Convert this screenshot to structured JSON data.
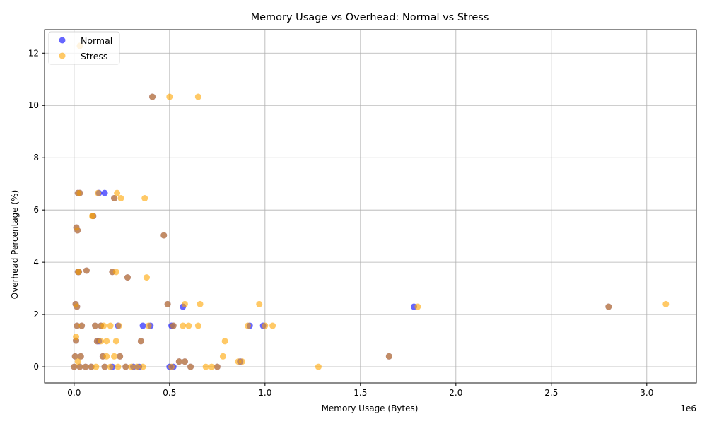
{
  "chart_data": {
    "type": "scatter",
    "title": "Memory Usage vs Overhead: Normal vs Stress",
    "xlabel": "Memory Usage (Bytes)",
    "ylabel": "Overhead Percentage (%)",
    "x_offset_label": "1e6",
    "xlim": [
      -0.155,
      3.26
    ],
    "ylim": [
      -0.62,
      12.9
    ],
    "x_ticks": [
      0.0,
      0.5,
      1.0,
      1.5,
      2.0,
      2.5,
      3.0
    ],
    "x_tick_labels": [
      "0.0",
      "0.5",
      "1.0",
      "1.5",
      "2.0",
      "2.5",
      "3.0"
    ],
    "y_ticks": [
      0,
      2,
      4,
      6,
      8,
      10,
      12
    ],
    "y_tick_labels": [
      "0",
      "2",
      "4",
      "6",
      "8",
      "10",
      "12"
    ],
    "grid": true,
    "legend_position": "top-left",
    "series": [
      {
        "name": "Normal",
        "color": "#0000ff",
        "alpha": 0.6,
        "points": [
          [
            0.0,
            0.0
          ],
          [
            0.005,
            0.4
          ],
          [
            0.01,
            1.0
          ],
          [
            0.015,
            1.57
          ],
          [
            0.02,
            3.63
          ],
          [
            0.008,
            2.4
          ],
          [
            0.012,
            5.33
          ],
          [
            0.02,
            6.65
          ],
          [
            0.03,
            0.0
          ],
          [
            0.035,
            0.4
          ],
          [
            0.04,
            1.57
          ],
          [
            0.03,
            6.65
          ],
          [
            0.025,
            3.63
          ],
          [
            0.018,
            5.22
          ],
          [
            0.015,
            2.3
          ],
          [
            0.06,
            0.0
          ],
          [
            0.065,
            3.68
          ],
          [
            0.09,
            0.0
          ],
          [
            0.1,
            5.77
          ],
          [
            0.11,
            1.57
          ],
          [
            0.12,
            0.98
          ],
          [
            0.13,
            6.65
          ],
          [
            0.14,
            1.57
          ],
          [
            0.15,
            0.4
          ],
          [
            0.16,
            0.0
          ],
          [
            0.16,
            6.65
          ],
          [
            0.13,
            0.98
          ],
          [
            0.2,
            0.0
          ],
          [
            0.2,
            3.63
          ],
          [
            0.21,
            6.45
          ],
          [
            0.23,
            1.57
          ],
          [
            0.24,
            0.4
          ],
          [
            0.27,
            0.0
          ],
          [
            0.28,
            3.42
          ],
          [
            0.31,
            0.0
          ],
          [
            0.34,
            0.0
          ],
          [
            0.35,
            0.98
          ],
          [
            0.36,
            1.57
          ],
          [
            0.4,
            1.57
          ],
          [
            0.41,
            10.33
          ],
          [
            0.47,
            5.03
          ],
          [
            0.49,
            2.4
          ],
          [
            0.5,
            0.0
          ],
          [
            0.51,
            1.57
          ],
          [
            0.52,
            0.0
          ],
          [
            0.52,
            1.57
          ],
          [
            0.55,
            0.2
          ],
          [
            0.57,
            2.3
          ],
          [
            0.58,
            0.2
          ],
          [
            0.61,
            0.0
          ],
          [
            0.75,
            0.0
          ],
          [
            0.87,
            0.2
          ],
          [
            0.92,
            1.57
          ],
          [
            0.99,
            1.57
          ],
          [
            1.65,
            0.4
          ],
          [
            1.78,
            2.3
          ],
          [
            2.8,
            2.3
          ]
        ]
      },
      {
        "name": "Stress",
        "color": "#ffa500",
        "alpha": 0.6,
        "points": [
          [
            0.0,
            0.0
          ],
          [
            0.005,
            0.4
          ],
          [
            0.01,
            1.0
          ],
          [
            0.01,
            1.15
          ],
          [
            0.015,
            1.57
          ],
          [
            0.02,
            3.63
          ],
          [
            0.008,
            2.4
          ],
          [
            0.012,
            5.33
          ],
          [
            0.02,
            6.65
          ],
          [
            0.03,
            12.28
          ],
          [
            0.03,
            0.0
          ],
          [
            0.035,
            0.4
          ],
          [
            0.04,
            1.57
          ],
          [
            0.03,
            6.65
          ],
          [
            0.025,
            3.63
          ],
          [
            0.018,
            5.22
          ],
          [
            0.015,
            2.3
          ],
          [
            0.02,
            0.2
          ],
          [
            0.06,
            0.0
          ],
          [
            0.065,
            3.68
          ],
          [
            0.09,
            0.0
          ],
          [
            0.095,
            5.77
          ],
          [
            0.1,
            5.77
          ],
          [
            0.11,
            1.57
          ],
          [
            0.115,
            0.0
          ],
          [
            0.12,
            0.98
          ],
          [
            0.125,
            6.65
          ],
          [
            0.14,
            1.57
          ],
          [
            0.14,
            0.98
          ],
          [
            0.15,
            0.4
          ],
          [
            0.155,
            1.57
          ],
          [
            0.16,
            0.0
          ],
          [
            0.17,
            0.4
          ],
          [
            0.17,
            0.98
          ],
          [
            0.19,
            0.0
          ],
          [
            0.19,
            1.57
          ],
          [
            0.2,
            3.63
          ],
          [
            0.21,
            0.4
          ],
          [
            0.21,
            6.45
          ],
          [
            0.22,
            0.98
          ],
          [
            0.22,
            3.63
          ],
          [
            0.225,
            6.65
          ],
          [
            0.23,
            0.0
          ],
          [
            0.235,
            1.57
          ],
          [
            0.24,
            0.4
          ],
          [
            0.245,
            6.45
          ],
          [
            0.27,
            0.0
          ],
          [
            0.28,
            3.42
          ],
          [
            0.3,
            0.0
          ],
          [
            0.33,
            0.0
          ],
          [
            0.35,
            0.98
          ],
          [
            0.36,
            0.0
          ],
          [
            0.37,
            6.45
          ],
          [
            0.38,
            3.42
          ],
          [
            0.39,
            1.57
          ],
          [
            0.41,
            10.33
          ],
          [
            0.47,
            5.03
          ],
          [
            0.49,
            2.4
          ],
          [
            0.5,
            10.33
          ],
          [
            0.51,
            0.0
          ],
          [
            0.52,
            1.57
          ],
          [
            0.55,
            0.2
          ],
          [
            0.57,
            1.57
          ],
          [
            0.58,
            2.4
          ],
          [
            0.58,
            0.2
          ],
          [
            0.6,
            1.57
          ],
          [
            0.61,
            0.0
          ],
          [
            0.65,
            10.33
          ],
          [
            0.65,
            1.57
          ],
          [
            0.66,
            2.4
          ],
          [
            0.69,
            0.0
          ],
          [
            0.72,
            0.0
          ],
          [
            0.75,
            0.0
          ],
          [
            0.78,
            0.4
          ],
          [
            0.79,
            0.98
          ],
          [
            0.86,
            0.2
          ],
          [
            0.88,
            0.2
          ],
          [
            0.91,
            1.57
          ],
          [
            0.97,
            2.4
          ],
          [
            1.0,
            1.57
          ],
          [
            1.04,
            1.57
          ],
          [
            1.28,
            0.0
          ],
          [
            1.65,
            0.4
          ],
          [
            1.8,
            2.3
          ],
          [
            2.8,
            2.3
          ],
          [
            3.1,
            2.4
          ]
        ]
      }
    ]
  }
}
